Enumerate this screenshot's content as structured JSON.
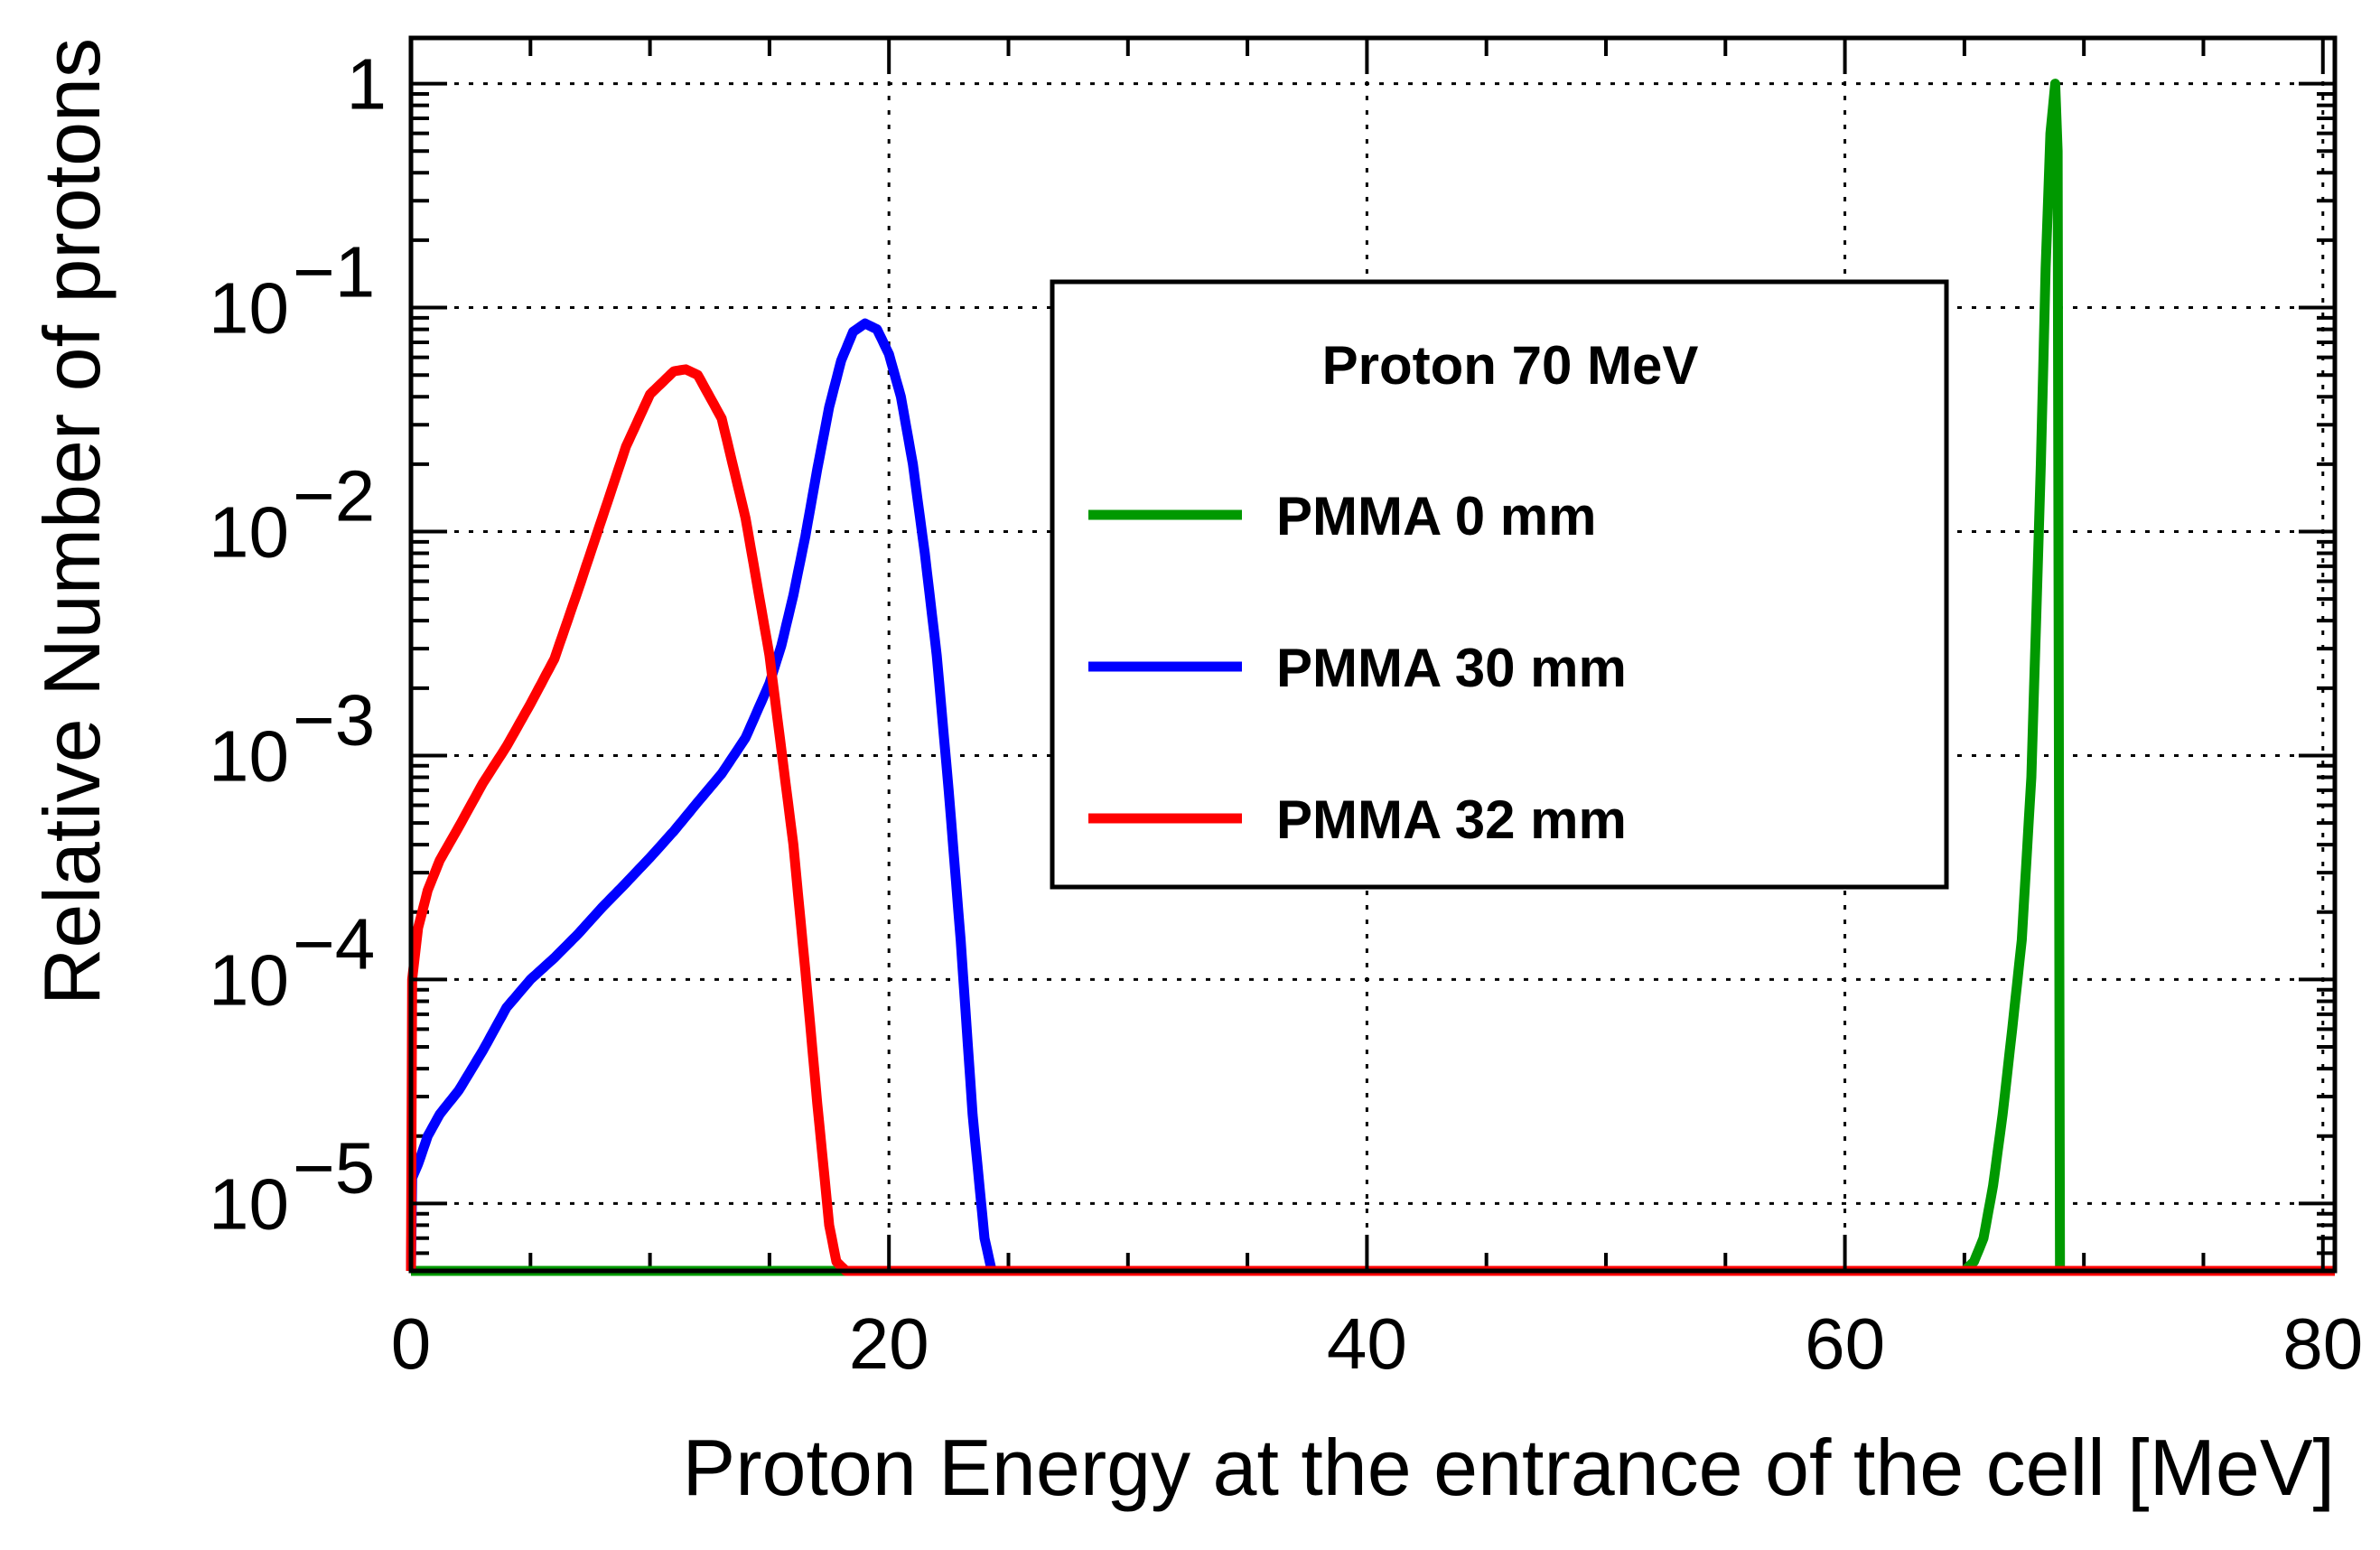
{
  "chart_data": {
    "type": "line",
    "title": "",
    "xlabel": "Proton Energy at the entrance of the cell [MeV]",
    "ylabel": "Relative Number of protons",
    "x_scale": "linear",
    "y_scale": "log",
    "xlim": [
      0,
      80.5
    ],
    "ylim": [
      5e-06,
      1.6
    ],
    "grid": true,
    "x_ticks": [
      {
        "value": 0,
        "label": "0"
      },
      {
        "value": 20,
        "label": "20"
      },
      {
        "value": 40,
        "label": "40"
      },
      {
        "value": 60,
        "label": "60"
      },
      {
        "value": 80,
        "label": "80"
      }
    ],
    "y_ticks": [
      {
        "value": 1,
        "base": "1",
        "exp": ""
      },
      {
        "value": 0.1,
        "base": "10",
        "exp": "−1"
      },
      {
        "value": 0.01,
        "base": "10",
        "exp": "−2"
      },
      {
        "value": 0.001,
        "base": "10",
        "exp": "−3"
      },
      {
        "value": 0.0001,
        "base": "10",
        "exp": "−4"
      },
      {
        "value": 1e-05,
        "base": "10",
        "exp": "−5"
      }
    ],
    "legend": {
      "title": "Proton 70 MeV",
      "placement": "top-center",
      "entries": [
        "PMMA 0 mm",
        "PMMA 30 mm",
        "PMMA 32 mm"
      ]
    },
    "series": [
      {
        "name": "PMMA 0 mm",
        "color": "#009900",
        "x": [
          0,
          65.0,
          65.4,
          65.8,
          66.2,
          66.6,
          67.0,
          67.4,
          67.8,
          68.0,
          68.2,
          68.4,
          68.6,
          68.8,
          68.9,
          69.0,
          80.5
        ],
        "y": [
          5e-06,
          5e-06,
          5.5e-06,
          7e-06,
          1.2e-05,
          2.5e-05,
          6e-05,
          0.00015,
          0.0008,
          0.004,
          0.02,
          0.15,
          0.6,
          1.0,
          0.5,
          5e-06,
          5e-06
        ]
      },
      {
        "name": "PMMA 30 mm",
        "color": "#0000ff",
        "x": [
          0,
          0.05,
          0.3,
          0.7,
          1.2,
          2,
          3,
          4,
          5,
          6,
          7,
          8,
          9,
          10,
          11,
          12,
          13,
          14,
          15,
          15.5,
          16,
          16.5,
          17,
          17.5,
          18,
          18.5,
          19,
          19.5,
          20,
          20.5,
          21,
          21.5,
          22,
          22.5,
          23,
          23.5,
          24.0,
          24.3,
          80.5
        ],
        "y": [
          5e-06,
          1.3e-05,
          1.5e-05,
          2e-05,
          2.5e-05,
          3.2e-05,
          4.8e-05,
          7.5e-05,
          0.0001,
          0.000125,
          0.00016,
          0.00021,
          0.00027,
          0.00035,
          0.00046,
          0.00062,
          0.00083,
          0.0012,
          0.0021,
          0.0031,
          0.0052,
          0.0095,
          0.019,
          0.036,
          0.058,
          0.078,
          0.085,
          0.08,
          0.062,
          0.04,
          0.02,
          0.008,
          0.0028,
          0.0007,
          0.00015,
          2.5e-05,
          7e-06,
          5e-06,
          5e-06
        ]
      },
      {
        "name": "PMMA 32 mm",
        "color": "#ff0000",
        "x": [
          0,
          0.05,
          0.3,
          0.7,
          1.2,
          2,
          3,
          4,
          5,
          6,
          7,
          8,
          9,
          10,
          11,
          11.5,
          12,
          13,
          14,
          15,
          16,
          16.5,
          17,
          17.5,
          17.8,
          18.2,
          80.5
        ],
        "y": [
          5e-06,
          0.0001,
          0.00017,
          0.00025,
          0.00034,
          0.00048,
          0.00075,
          0.0011,
          0.0017,
          0.0027,
          0.0055,
          0.0115,
          0.024,
          0.041,
          0.052,
          0.053,
          0.05,
          0.032,
          0.0115,
          0.0028,
          0.0004,
          0.00011,
          2.8e-05,
          8e-06,
          5.5e-06,
          5e-06,
          5e-06
        ]
      }
    ]
  }
}
